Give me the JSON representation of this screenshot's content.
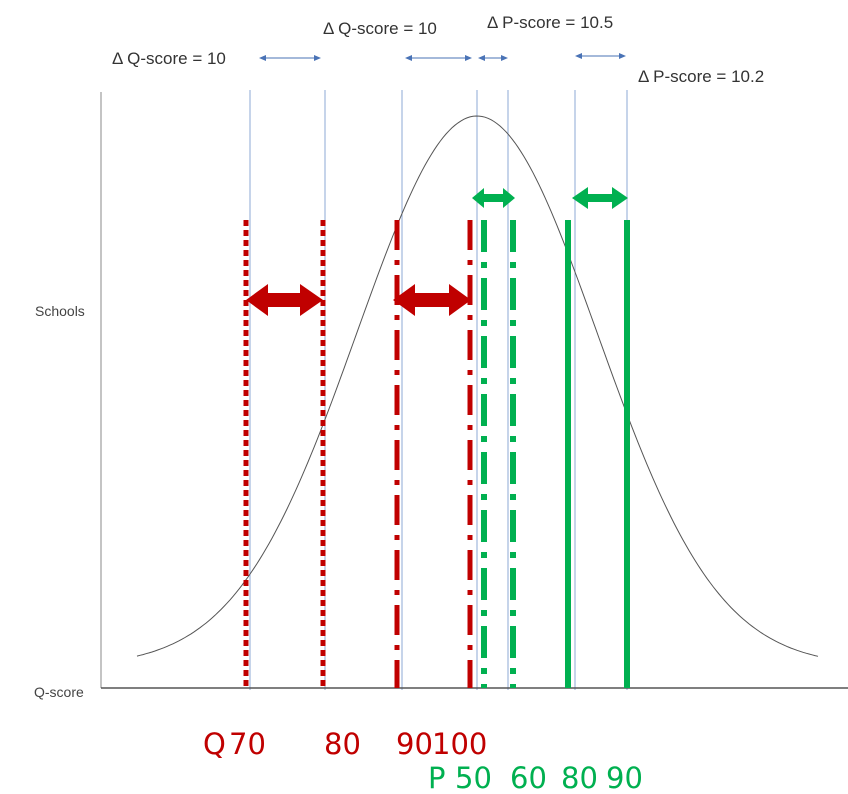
{
  "annotations": {
    "dq_left": "Δ Q-score = 10",
    "dq_mid": "Δ Q-score = 10",
    "dp_top": "Δ P-score = 10.5",
    "dp_right": "Δ P-score = 10.2"
  },
  "y_axis_label": "Schools",
  "x_axis_label_partial": "Q-score",
  "q_scale": {
    "prefix": "Q",
    "ticks": [
      "70",
      "80",
      "90",
      "100"
    ]
  },
  "p_scale": {
    "prefix": "P",
    "ticks": [
      "50",
      "60",
      "80",
      "90"
    ]
  },
  "colors": {
    "q_lines": "#c00000",
    "p_lines": "#00b050",
    "curve": "#555555",
    "thin_lines": "#8eaad6",
    "axis": "#555555",
    "small_arrows": "#4a73b6"
  }
}
